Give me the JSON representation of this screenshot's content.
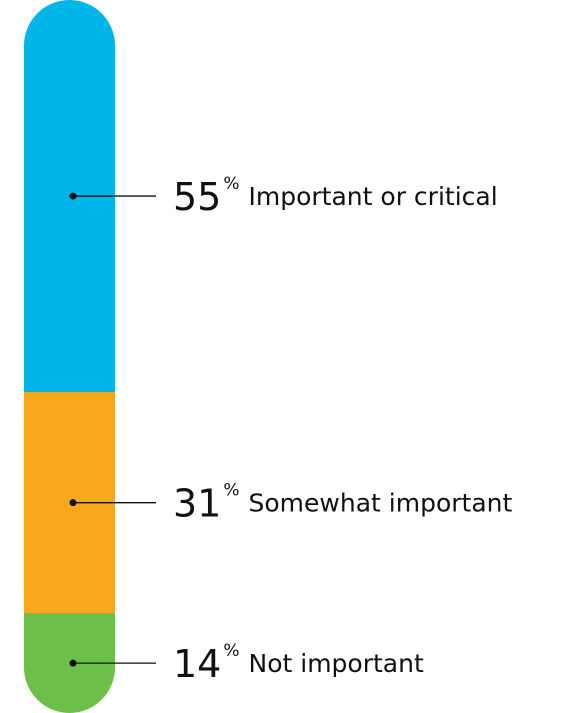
{
  "chart_data": {
    "type": "bar",
    "orientation": "vertical-stacked",
    "title": "",
    "unit": "%",
    "segments": [
      {
        "label": "Important or critical",
        "value": 55,
        "color": "#00B5E8"
      },
      {
        "label": "Somewhat important",
        "value": 31,
        "color": "#F9A81B"
      },
      {
        "label": "Not important",
        "value": 14,
        "color": "#6CC04A"
      }
    ]
  }
}
